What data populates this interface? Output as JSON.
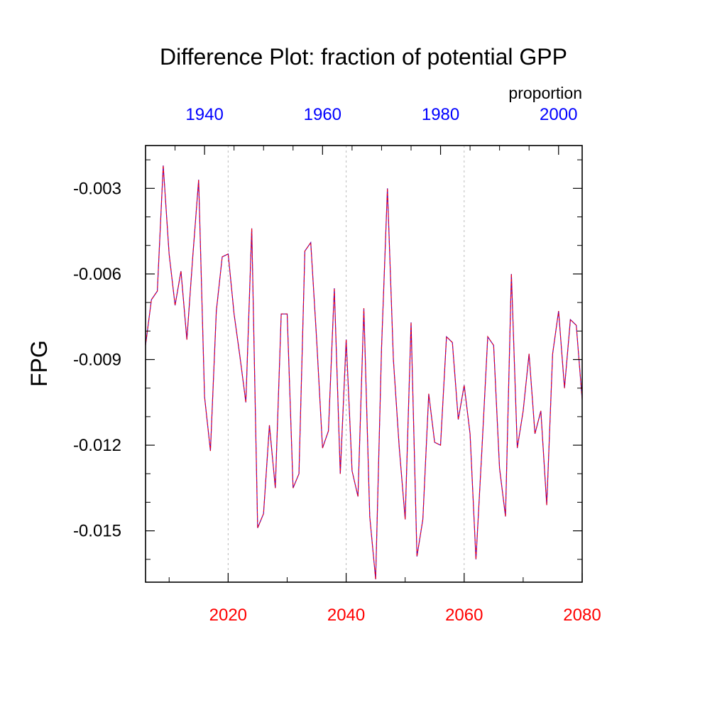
{
  "chart_data": {
    "type": "line",
    "title": "Difference Plot: fraction of potential GPP",
    "ylabel": "FPG",
    "units_label": "proportion",
    "xlim": [
      2006,
      2080
    ],
    "ylim": [
      -0.0168,
      -0.0015
    ],
    "x_bottom_ticks": [
      {
        "value": 2020,
        "label": "2020"
      },
      {
        "value": 2040,
        "label": "2040"
      },
      {
        "value": 2060,
        "label": "2060"
      },
      {
        "value": 2080,
        "label": "2080"
      }
    ],
    "x_top_ticks": [
      {
        "value": 2016,
        "label": "1940"
      },
      {
        "value": 2036,
        "label": "1960"
      },
      {
        "value": 2056,
        "label": "1980"
      },
      {
        "value": 2076,
        "label": "2000"
      }
    ],
    "y_ticks": [
      {
        "value": -0.003,
        "label": "-0.003"
      },
      {
        "value": -0.006,
        "label": "-0.006"
      },
      {
        "value": -0.009,
        "label": "-0.009"
      },
      {
        "value": -0.012,
        "label": "-0.012"
      },
      {
        "value": -0.015,
        "label": "-0.015"
      }
    ],
    "grid": {
      "vertical_at": [
        2020,
        2040,
        2060
      ],
      "style": "dashed"
    },
    "colors": {
      "bottom_axis": "#ff0000",
      "top_axis": "#0000ff",
      "series_solid": "#6a00a0",
      "series_dashed": "#ff0000",
      "grid": "#bbbbbb"
    },
    "x": [
      2006,
      2007,
      2008,
      2009,
      2010,
      2011,
      2012,
      2013,
      2014,
      2015,
      2016,
      2017,
      2018,
      2019,
      2020,
      2021,
      2022,
      2023,
      2024,
      2025,
      2026,
      2027,
      2028,
      2029,
      2030,
      2031,
      2032,
      2033,
      2034,
      2035,
      2036,
      2037,
      2038,
      2039,
      2040,
      2041,
      2042,
      2043,
      2044,
      2045,
      2046,
      2047,
      2048,
      2049,
      2050,
      2051,
      2052,
      2053,
      2054,
      2055,
      2056,
      2057,
      2058,
      2059,
      2060,
      2061,
      2062,
      2063,
      2064,
      2065,
      2066,
      2067,
      2068,
      2069,
      2070,
      2071,
      2072,
      2073,
      2074,
      2075,
      2076,
      2077,
      2078,
      2079,
      2080
    ],
    "series": [
      {
        "values": [
          -0.0085,
          -0.0069,
          -0.0066,
          -0.0022,
          -0.0053,
          -0.0071,
          -0.0059,
          -0.0083,
          -0.0054,
          -0.0027,
          -0.0103,
          -0.0122,
          -0.0073,
          -0.0054,
          -0.0053,
          -0.0074,
          -0.0089,
          -0.0105,
          -0.0044,
          -0.0149,
          -0.0144,
          -0.0113,
          -0.0135,
          -0.0074,
          -0.0074,
          -0.0135,
          -0.013,
          -0.0052,
          -0.0049,
          -0.0083,
          -0.0121,
          -0.0115,
          -0.0065,
          -0.013,
          -0.0083,
          -0.0129,
          -0.0138,
          -0.0072,
          -0.0145,
          -0.0167,
          -0.0086,
          -0.003,
          -0.009,
          -0.0121,
          -0.0146,
          -0.0077,
          -0.0159,
          -0.0146,
          -0.0102,
          -0.0119,
          -0.012,
          -0.0082,
          -0.0084,
          -0.0111,
          -0.0099,
          -0.0116,
          -0.016,
          -0.0122,
          -0.0082,
          -0.0085,
          -0.0128,
          -0.0145,
          -0.006,
          -0.0121,
          -0.0108,
          -0.0088,
          -0.0116,
          -0.0108,
          -0.0141,
          -0.0088,
          -0.0073,
          -0.01,
          -0.0076,
          -0.0078,
          -0.0104
        ]
      }
    ]
  }
}
